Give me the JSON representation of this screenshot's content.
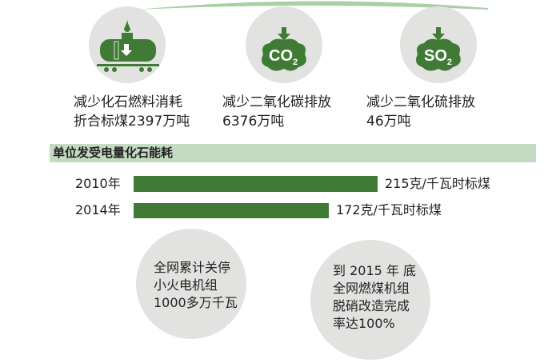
{
  "stats": [
    {
      "icon": "oil-tank-car-icon",
      "lines": [
        "减少化石燃料消耗",
        "折合标煤2397万吨"
      ]
    },
    {
      "icon": "co2-cloud-icon",
      "lines": [
        "减少二氧化碳排放",
        "6376万吨"
      ]
    },
    {
      "icon": "so2-cloud-icon",
      "lines": [
        "减少二氧化硫排放",
        "46万吨"
      ]
    }
  ],
  "co2_label": "CO",
  "so2_label": "SO",
  "sub2": "2",
  "colors": {
    "accent": "#3f7b34",
    "header_bg": "#c3dbc1",
    "circle": "#e2e2e0"
  },
  "chart_data": {
    "type": "bar",
    "orientation": "horizontal",
    "title": "单位发受电量化石能耗",
    "categories": [
      "2010年",
      "2014年"
    ],
    "values": [
      215,
      172
    ],
    "unit": "克/千瓦时标煤",
    "value_labels": [
      "215克/千瓦时标煤",
      "172克/千瓦时标煤"
    ]
  },
  "bubbles": [
    {
      "lines": [
        "全网累计关停",
        "小火电机组",
        "1000多万千瓦"
      ]
    },
    {
      "lines": [
        "到 2015 年 底",
        "全网燃煤机组",
        "脱硝改造完成",
        "率达100%"
      ]
    }
  ]
}
